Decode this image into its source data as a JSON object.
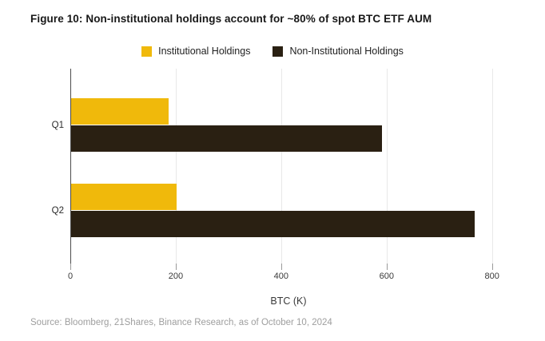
{
  "title": "Figure 10: Non-institutional holdings account for ~80% of spot BTC ETF AUM",
  "source": "Source: Bloomberg, 21Shares, Binance Research, as of October 10, 2024",
  "colors": {
    "institutional": "#F0B90B",
    "non_institutional": "#2A2012",
    "gridline": "#E8E8E8",
    "axis_line": "#4D4D4D",
    "title_text": "#181818",
    "source_text": "#9E9E9E"
  },
  "chart_data": {
    "type": "bar",
    "orientation": "horizontal",
    "title": "Figure 10: Non-institutional holdings account for ~80% of spot BTC ETF AUM",
    "categories": [
      "Q1",
      "Q2"
    ],
    "series": [
      {
        "name": "Institutional Holdings",
        "color": "#F0B90B",
        "values": [
          185,
          200
        ]
      },
      {
        "name": "Non-Institutional Holdings",
        "color": "#2A2012",
        "values": [
          590,
          765
        ]
      }
    ],
    "xlabel": "BTC (K)",
    "ylabel": "",
    "xticks": [
      0,
      200,
      400,
      600,
      800
    ],
    "xlim": [
      0,
      852
    ],
    "grid": true,
    "legend_position": "top-center"
  }
}
